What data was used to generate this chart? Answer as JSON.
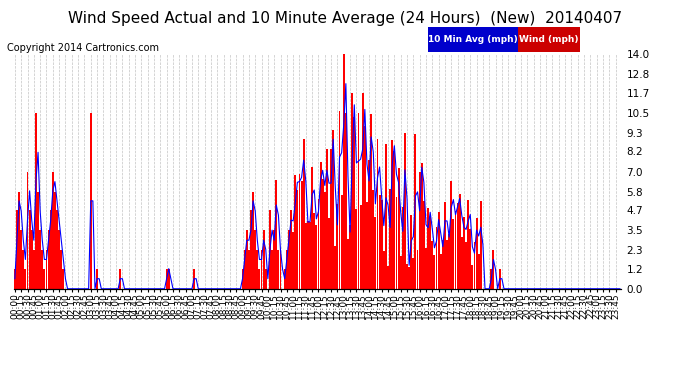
{
  "title": "Wind Speed Actual and 10 Minute Average (24 Hours)  (New)  20140407",
  "copyright": "Copyright 2014 Cartronics.com",
  "legend_labels": [
    "10 Min Avg (mph)",
    "Wind (mph)"
  ],
  "legend_bg_colors": [
    "#0000cc",
    "#cc0000"
  ],
  "legend_text_colors": [
    "#ffffff",
    "#ffffff"
  ],
  "yticks": [
    0.0,
    1.2,
    2.3,
    3.5,
    4.7,
    5.8,
    7.0,
    8.2,
    9.3,
    10.5,
    11.7,
    12.8,
    14.0
  ],
  "ylim": [
    0.0,
    14.0
  ],
  "background_color": "#ffffff",
  "grid_color": "#aaaaaa",
  "bar_color": "#ff0000",
  "dark_bar_color": "#111111",
  "line_color": "#0000ff",
  "title_fontsize": 11,
  "copyright_fontsize": 7,
  "tick_fontsize": 6.5,
  "ytick_fontsize": 7.5
}
